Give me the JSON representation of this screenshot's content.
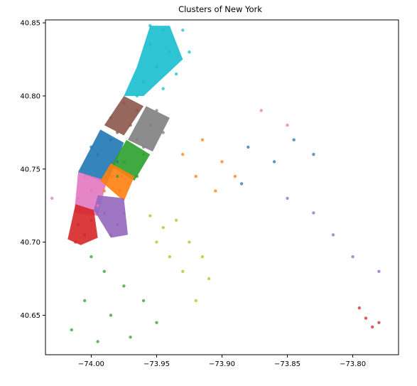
{
  "chart_data": {
    "type": "scatter",
    "title": "Clusters of New York",
    "xlabel": "",
    "ylabel": "",
    "xlim": [
      -74.035,
      -73.765
    ],
    "ylim": [
      40.623,
      40.852
    ],
    "x_ticks": [
      {
        "value": -74.0,
        "label": "−74.00"
      },
      {
        "value": -73.95,
        "label": "−73.95"
      },
      {
        "value": -73.9,
        "label": "−73.90"
      },
      {
        "value": -73.85,
        "label": "−73.85"
      },
      {
        "value": -73.8,
        "label": "−73.80"
      }
    ],
    "y_ticks": [
      {
        "value": 40.65,
        "label": "40.65"
      },
      {
        "value": 40.7,
        "label": "40.70"
      },
      {
        "value": 40.75,
        "label": "40.75"
      },
      {
        "value": 40.8,
        "label": "40.80"
      },
      {
        "value": 40.85,
        "label": "40.85"
      }
    ],
    "grid": false,
    "series": [
      {
        "color": "#17becf",
        "points": [
          [
            -73.955,
            40.848
          ],
          [
            -73.945,
            40.845
          ],
          [
            -73.94,
            40.83
          ],
          [
            -73.95,
            40.82
          ],
          [
            -73.96,
            40.81
          ],
          [
            -73.965,
            40.8
          ],
          [
            -73.945,
            40.805
          ],
          [
            -73.935,
            40.815
          ],
          [
            -73.925,
            40.83
          ],
          [
            -73.93,
            40.845
          ],
          [
            -73.955,
            40.835
          ]
        ]
      },
      {
        "color": "#8c564b",
        "points": [
          [
            -73.985,
            40.785
          ],
          [
            -73.975,
            40.795
          ],
          [
            -73.97,
            40.78
          ],
          [
            -73.98,
            40.775
          ],
          [
            -73.965,
            40.79
          ]
        ]
      },
      {
        "color": "#7f7f7f",
        "points": [
          [
            -73.965,
            40.77
          ],
          [
            -73.955,
            40.78
          ],
          [
            -73.95,
            40.79
          ],
          [
            -73.96,
            40.765
          ],
          [
            -73.945,
            40.775
          ]
        ]
      },
      {
        "color": "#1f77b4",
        "points": [
          [
            -73.995,
            40.76
          ],
          [
            -73.985,
            40.77
          ],
          [
            -73.98,
            40.755
          ],
          [
            -74.0,
            40.765
          ],
          [
            -73.88,
            40.765
          ],
          [
            -73.86,
            40.755
          ],
          [
            -73.845,
            40.77
          ],
          [
            -73.885,
            40.74
          ],
          [
            -73.83,
            40.76
          ]
        ]
      },
      {
        "color": "#2ca02c",
        "points": [
          [
            -73.975,
            40.755
          ],
          [
            -73.965,
            40.745
          ],
          [
            -73.96,
            40.76
          ],
          [
            -73.98,
            40.745
          ],
          [
            -74.0,
            40.69
          ],
          [
            -73.99,
            40.68
          ],
          [
            -73.975,
            40.67
          ],
          [
            -73.96,
            40.66
          ],
          [
            -74.005,
            40.66
          ],
          [
            -73.985,
            40.65
          ],
          [
            -73.95,
            40.645
          ],
          [
            -74.015,
            40.64
          ],
          [
            -73.97,
            40.635
          ],
          [
            -73.995,
            40.632
          ]
        ]
      },
      {
        "color": "#ff7f0e",
        "points": [
          [
            -73.985,
            40.745
          ],
          [
            -73.978,
            40.735
          ],
          [
            -73.99,
            40.735
          ],
          [
            -73.93,
            40.76
          ],
          [
            -73.915,
            40.77
          ],
          [
            -73.9,
            40.755
          ],
          [
            -73.89,
            40.745
          ],
          [
            -73.92,
            40.745
          ],
          [
            -73.905,
            40.735
          ]
        ]
      },
      {
        "color": "#e377c2",
        "points": [
          [
            -74.005,
            40.745
          ],
          [
            -74.0,
            40.735
          ],
          [
            -73.995,
            40.725
          ],
          [
            -74.01,
            40.73
          ],
          [
            -73.87,
            40.79
          ],
          [
            -73.85,
            40.78
          ],
          [
            -74.03,
            40.73
          ]
        ]
      },
      {
        "color": "#9467bd",
        "points": [
          [
            -73.99,
            40.72
          ],
          [
            -73.98,
            40.712
          ],
          [
            -73.985,
            40.705
          ],
          [
            -73.975,
            40.72
          ],
          [
            -73.85,
            40.73
          ],
          [
            -73.83,
            40.72
          ],
          [
            -73.815,
            40.705
          ],
          [
            -73.8,
            40.69
          ],
          [
            -73.78,
            40.68
          ]
        ]
      },
      {
        "color": "#d62728",
        "points": [
          [
            -74.01,
            40.712
          ],
          [
            -74.005,
            40.705
          ],
          [
            -74.012,
            40.7
          ],
          [
            -74.0,
            40.715
          ],
          [
            -73.79,
            40.648
          ],
          [
            -73.78,
            40.645
          ],
          [
            -73.795,
            40.655
          ],
          [
            -73.785,
            40.642
          ]
        ]
      },
      {
        "color": "#bcbd22",
        "points": [
          [
            -73.955,
            40.718
          ],
          [
            -73.945,
            40.71
          ],
          [
            -73.95,
            40.7
          ],
          [
            -73.935,
            40.715
          ],
          [
            -73.94,
            40.69
          ],
          [
            -73.925,
            40.7
          ],
          [
            -73.915,
            40.69
          ],
          [
            -73.93,
            40.68
          ],
          [
            -73.91,
            40.675
          ],
          [
            -73.92,
            40.66
          ]
        ]
      }
    ]
  }
}
